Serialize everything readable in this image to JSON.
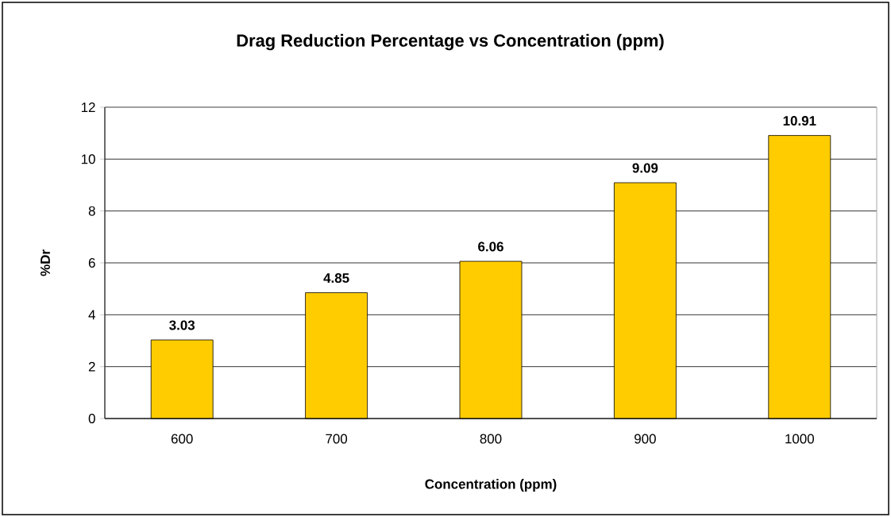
{
  "chart_data": {
    "type": "bar",
    "title": "Drag Reduction Percentage vs Concentration (ppm)",
    "xlabel": "Concentration (ppm)",
    "ylabel": "%Dr",
    "categories": [
      "600",
      "700",
      "800",
      "900",
      "1000"
    ],
    "values": [
      3.03,
      4.85,
      6.06,
      9.09,
      10.91
    ],
    "color": "#ffcc00",
    "ylim": [
      0,
      12
    ],
    "yticks": [
      0,
      2,
      4,
      6,
      8,
      10,
      12
    ],
    "grid": "y",
    "data_labels": true
  }
}
